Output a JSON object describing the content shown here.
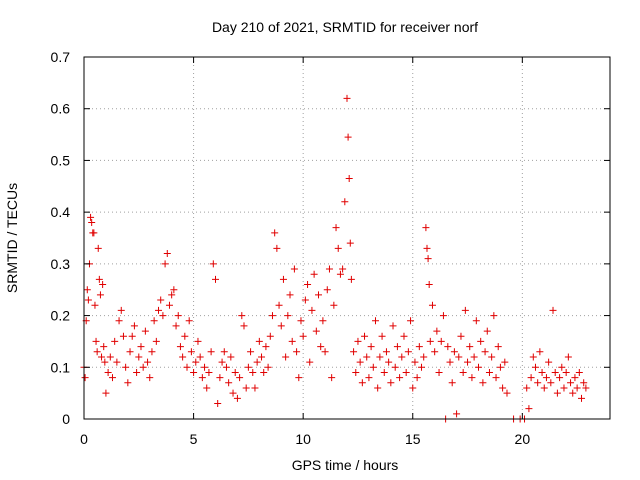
{
  "chart_data": {
    "type": "scatter",
    "title": "Day 210 of 2021, SRMTID for receiver norf",
    "xlabel": "GPS time / hours",
    "ylabel": "SRMTID / TECUs",
    "xlim": [
      0,
      24
    ],
    "ylim": [
      0,
      0.7
    ],
    "xticks": [
      0,
      5,
      10,
      15,
      20
    ],
    "yticks": [
      0,
      0.1,
      0.2,
      0.3,
      0.4,
      0.5,
      0.6,
      0.7
    ],
    "ytick_labels": [
      "0",
      "0.1",
      "0.2",
      "0.3",
      "0.4",
      "0.5",
      "0.6",
      "0.7"
    ],
    "grid": true,
    "marker": "+",
    "series": [
      {
        "name": "SRMTID",
        "color": "#e00000",
        "points": [
          [
            0.0,
            0.1
          ],
          [
            0.05,
            0.08
          ],
          [
            0.1,
            0.19
          ],
          [
            0.15,
            0.25
          ],
          [
            0.2,
            0.23
          ],
          [
            0.25,
            0.3
          ],
          [
            0.3,
            0.39
          ],
          [
            0.35,
            0.38
          ],
          [
            0.4,
            0.36
          ],
          [
            0.45,
            0.36
          ],
          [
            0.5,
            0.22
          ],
          [
            0.55,
            0.15
          ],
          [
            0.6,
            0.13
          ],
          [
            0.65,
            0.33
          ],
          [
            0.7,
            0.27
          ],
          [
            0.75,
            0.24
          ],
          [
            0.8,
            0.12
          ],
          [
            0.85,
            0.26
          ],
          [
            0.9,
            0.14
          ],
          [
            0.95,
            0.11
          ],
          [
            1.0,
            0.05
          ],
          [
            1.1,
            0.09
          ],
          [
            1.2,
            0.12
          ],
          [
            1.3,
            0.08
          ],
          [
            1.4,
            0.15
          ],
          [
            1.5,
            0.11
          ],
          [
            1.6,
            0.19
          ],
          [
            1.7,
            0.21
          ],
          [
            1.8,
            0.16
          ],
          [
            1.9,
            0.1
          ],
          [
            2.0,
            0.07
          ],
          [
            2.1,
            0.13
          ],
          [
            2.2,
            0.16
          ],
          [
            2.3,
            0.18
          ],
          [
            2.4,
            0.09
          ],
          [
            2.5,
            0.12
          ],
          [
            2.6,
            0.14
          ],
          [
            2.7,
            0.1
          ],
          [
            2.8,
            0.17
          ],
          [
            2.9,
            0.11
          ],
          [
            3.0,
            0.08
          ],
          [
            3.1,
            0.13
          ],
          [
            3.2,
            0.19
          ],
          [
            3.3,
            0.15
          ],
          [
            3.4,
            0.21
          ],
          [
            3.5,
            0.23
          ],
          [
            3.6,
            0.2
          ],
          [
            3.7,
            0.3
          ],
          [
            3.8,
            0.32
          ],
          [
            3.9,
            0.22
          ],
          [
            4.0,
            0.24
          ],
          [
            4.1,
            0.25
          ],
          [
            4.2,
            0.18
          ],
          [
            4.3,
            0.2
          ],
          [
            4.4,
            0.14
          ],
          [
            4.5,
            0.12
          ],
          [
            4.6,
            0.16
          ],
          [
            4.7,
            0.1
          ],
          [
            4.8,
            0.19
          ],
          [
            4.9,
            0.13
          ],
          [
            5.0,
            0.09
          ],
          [
            5.1,
            0.11
          ],
          [
            5.2,
            0.15
          ],
          [
            5.3,
            0.12
          ],
          [
            5.4,
            0.08
          ],
          [
            5.5,
            0.1
          ],
          [
            5.6,
            0.06
          ],
          [
            5.7,
            0.09
          ],
          [
            5.8,
            0.13
          ],
          [
            5.9,
            0.3
          ],
          [
            6.0,
            0.27
          ],
          [
            6.1,
            0.03
          ],
          [
            6.2,
            0.08
          ],
          [
            6.3,
            0.11
          ],
          [
            6.4,
            0.13
          ],
          [
            6.5,
            0.1
          ],
          [
            6.6,
            0.07
          ],
          [
            6.7,
            0.12
          ],
          [
            6.8,
            0.05
          ],
          [
            6.9,
            0.09
          ],
          [
            7.0,
            0.04
          ],
          [
            7.1,
            0.08
          ],
          [
            7.2,
            0.2
          ],
          [
            7.3,
            0.18
          ],
          [
            7.4,
            0.06
          ],
          [
            7.5,
            0.1
          ],
          [
            7.6,
            0.13
          ],
          [
            7.7,
            0.09
          ],
          [
            7.8,
            0.06
          ],
          [
            7.9,
            0.11
          ],
          [
            8.0,
            0.15
          ],
          [
            8.1,
            0.12
          ],
          [
            8.2,
            0.09
          ],
          [
            8.3,
            0.14
          ],
          [
            8.4,
            0.1
          ],
          [
            8.5,
            0.16
          ],
          [
            8.6,
            0.2
          ],
          [
            8.7,
            0.36
          ],
          [
            8.8,
            0.33
          ],
          [
            8.9,
            0.22
          ],
          [
            9.0,
            0.18
          ],
          [
            9.1,
            0.27
          ],
          [
            9.2,
            0.12
          ],
          [
            9.3,
            0.2
          ],
          [
            9.4,
            0.24
          ],
          [
            9.5,
            0.15
          ],
          [
            9.6,
            0.29
          ],
          [
            9.7,
            0.13
          ],
          [
            9.8,
            0.08
          ],
          [
            9.9,
            0.19
          ],
          [
            10.0,
            0.16
          ],
          [
            10.1,
            0.23
          ],
          [
            10.2,
            0.26
          ],
          [
            10.3,
            0.11
          ],
          [
            10.4,
            0.21
          ],
          [
            10.5,
            0.28
          ],
          [
            10.6,
            0.17
          ],
          [
            10.7,
            0.24
          ],
          [
            10.8,
            0.14
          ],
          [
            10.9,
            0.19
          ],
          [
            11.0,
            0.13
          ],
          [
            11.1,
            0.25
          ],
          [
            11.2,
            0.29
          ],
          [
            11.3,
            0.08
          ],
          [
            11.4,
            0.22
          ],
          [
            11.5,
            0.37
          ],
          [
            11.6,
            0.33
          ],
          [
            11.7,
            0.28
          ],
          [
            11.8,
            0.29
          ],
          [
            11.9,
            0.42
          ],
          [
            12.0,
            0.62
          ],
          [
            12.05,
            0.545
          ],
          [
            12.1,
            0.465
          ],
          [
            12.15,
            0.34
          ],
          [
            12.2,
            0.27
          ],
          [
            12.3,
            0.13
          ],
          [
            12.4,
            0.09
          ],
          [
            12.5,
            0.15
          ],
          [
            12.6,
            0.11
          ],
          [
            12.7,
            0.07
          ],
          [
            12.8,
            0.16
          ],
          [
            12.9,
            0.12
          ],
          [
            13.0,
            0.08
          ],
          [
            13.1,
            0.14
          ],
          [
            13.2,
            0.1
          ],
          [
            13.3,
            0.19
          ],
          [
            13.4,
            0.06
          ],
          [
            13.5,
            0.12
          ],
          [
            13.6,
            0.16
          ],
          [
            13.7,
            0.09
          ],
          [
            13.8,
            0.13
          ],
          [
            13.9,
            0.11
          ],
          [
            14.0,
            0.07
          ],
          [
            14.1,
            0.18
          ],
          [
            14.2,
            0.1
          ],
          [
            14.3,
            0.14
          ],
          [
            14.4,
            0.08
          ],
          [
            14.5,
            0.12
          ],
          [
            14.6,
            0.16
          ],
          [
            14.7,
            0.09
          ],
          [
            14.8,
            0.13
          ],
          [
            14.9,
            0.19
          ],
          [
            15.0,
            0.06
          ],
          [
            15.1,
            0.11
          ],
          [
            15.2,
            0.08
          ],
          [
            15.3,
            0.14
          ],
          [
            15.4,
            0.1
          ],
          [
            15.5,
            0.12
          ],
          [
            15.6,
            0.37
          ],
          [
            15.65,
            0.33
          ],
          [
            15.7,
            0.31
          ],
          [
            15.75,
            0.26
          ],
          [
            15.8,
            0.15
          ],
          [
            15.9,
            0.22
          ],
          [
            16.0,
            0.13
          ],
          [
            16.1,
            0.17
          ],
          [
            16.2,
            0.09
          ],
          [
            16.3,
            0.15
          ],
          [
            16.4,
            0.2
          ],
          [
            16.5,
            0.0
          ],
          [
            16.6,
            0.14
          ],
          [
            16.7,
            0.11
          ],
          [
            16.8,
            0.07
          ],
          [
            16.9,
            0.13
          ],
          [
            17.0,
            0.01
          ],
          [
            17.1,
            0.12
          ],
          [
            17.2,
            0.16
          ],
          [
            17.3,
            0.09
          ],
          [
            17.4,
            0.21
          ],
          [
            17.5,
            0.11
          ],
          [
            17.6,
            0.14
          ],
          [
            17.7,
            0.08
          ],
          [
            17.8,
            0.12
          ],
          [
            17.9,
            0.19
          ],
          [
            18.0,
            0.1
          ],
          [
            18.1,
            0.15
          ],
          [
            18.2,
            0.07
          ],
          [
            18.3,
            0.13
          ],
          [
            18.4,
            0.17
          ],
          [
            18.5,
            0.09
          ],
          [
            18.6,
            0.12
          ],
          [
            18.7,
            0.2
          ],
          [
            18.8,
            0.08
          ],
          [
            18.9,
            0.14
          ],
          [
            19.0,
            0.1
          ],
          [
            19.1,
            0.06
          ],
          [
            19.2,
            0.11
          ],
          [
            19.3,
            0.05
          ],
          [
            19.6,
            0.0
          ],
          [
            19.9,
            0.0
          ],
          [
            20.1,
            0.0
          ],
          [
            20.2,
            0.06
          ],
          [
            20.3,
            0.02
          ],
          [
            20.4,
            0.08
          ],
          [
            20.5,
            0.12
          ],
          [
            20.6,
            0.1
          ],
          [
            20.7,
            0.07
          ],
          [
            20.8,
            0.13
          ],
          [
            20.9,
            0.09
          ],
          [
            21.0,
            0.06
          ],
          [
            21.1,
            0.08
          ],
          [
            21.2,
            0.11
          ],
          [
            21.3,
            0.07
          ],
          [
            21.4,
            0.21
          ],
          [
            21.5,
            0.09
          ],
          [
            21.6,
            0.05
          ],
          [
            21.7,
            0.08
          ],
          [
            21.8,
            0.1
          ],
          [
            21.9,
            0.06
          ],
          [
            22.0,
            0.09
          ],
          [
            22.1,
            0.12
          ],
          [
            22.2,
            0.07
          ],
          [
            22.3,
            0.05
          ],
          [
            22.4,
            0.08
          ],
          [
            22.5,
            0.06
          ],
          [
            22.6,
            0.09
          ],
          [
            22.7,
            0.04
          ],
          [
            22.8,
            0.07
          ],
          [
            22.9,
            0.06
          ]
        ]
      }
    ]
  }
}
